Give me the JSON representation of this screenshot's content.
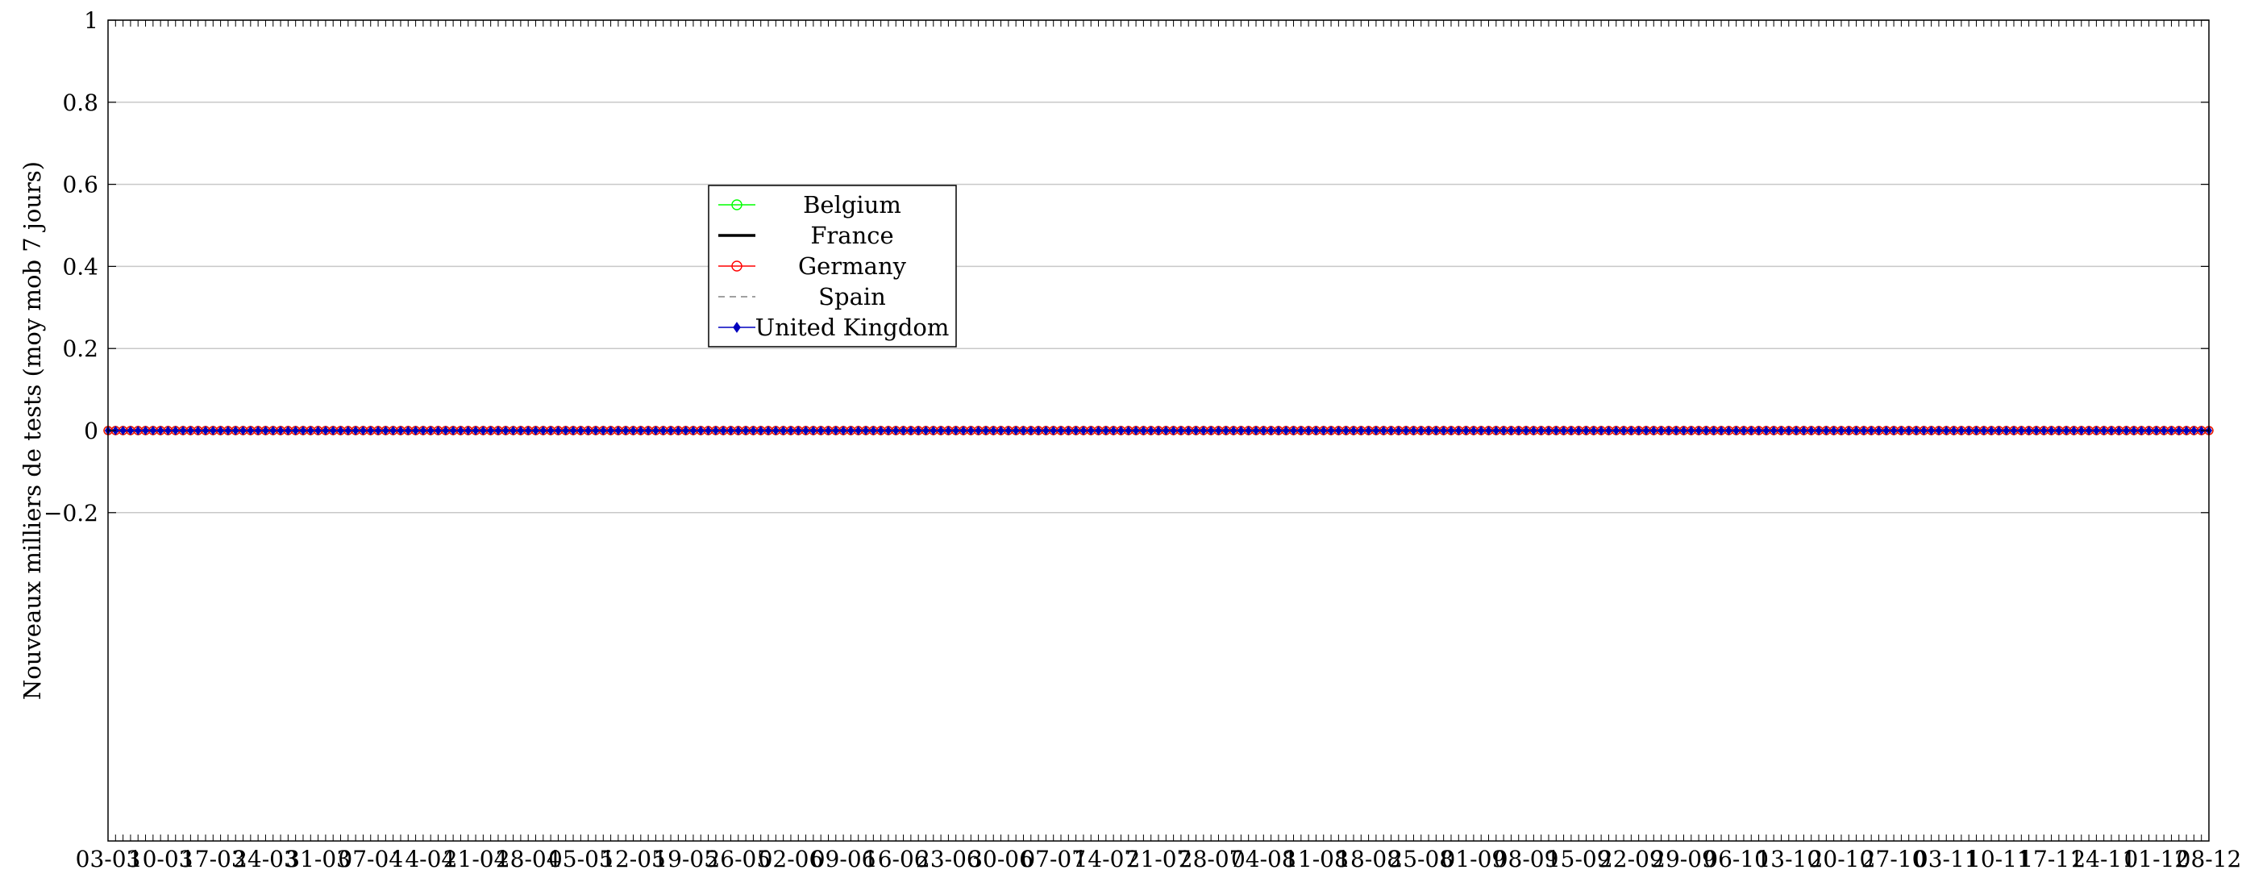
{
  "chart_data": {
    "type": "line",
    "ylabel": "Nouveaux milliers de tests (moy mob 7 jours)",
    "xlabel": "",
    "ylim": [
      -1,
      1
    ],
    "yticks": [
      -0.2,
      0,
      0.2,
      0.4,
      0.6,
      0.8,
      1
    ],
    "ytick_labels": [
      "−0.2",
      "0",
      "0.2",
      "0.4",
      "0.6",
      "0.8",
      "1"
    ],
    "x_start": "03-03",
    "x_end": "08-12",
    "x_tick_labels": [
      "03-03",
      "10-03",
      "17-03",
      "24-03",
      "31-03",
      "07-04",
      "14-04",
      "21-04",
      "28-04",
      "05-05",
      "12-05",
      "19-05",
      "26-05",
      "02-06",
      "09-06",
      "16-06",
      "23-06",
      "30-06",
      "07-07",
      "14-07",
      "21-07",
      "28-07",
      "04-08",
      "11-08",
      "18-08",
      "25-08",
      "01-09",
      "08-09",
      "15-09",
      "22-09",
      "29-09",
      "06-10",
      "13-10",
      "20-10",
      "27-10",
      "03-11",
      "10-11",
      "17-11",
      "24-11",
      "01-12",
      "08-12"
    ],
    "grid": "horizontal",
    "legend_position": "upper-left-center",
    "series": [
      {
        "name": "Belgium",
        "color": "#00ff00",
        "marker": "circle",
        "style": "solid",
        "value": 0
      },
      {
        "name": "France",
        "color": "#000000",
        "marker": "none",
        "style": "solid-thick",
        "value": 0
      },
      {
        "name": "Germany",
        "color": "#ff0000",
        "marker": "circle",
        "style": "solid",
        "value": 0
      },
      {
        "name": "Spain",
        "color": "#808080",
        "marker": "none",
        "style": "dashed",
        "value": 0
      },
      {
        "name": "United Kingdom",
        "color": "#0000bf",
        "marker": "diamond",
        "style": "solid",
        "value": 0
      }
    ],
    "note_values": "All series are 0 on every day from 03-03 to 08-12"
  }
}
